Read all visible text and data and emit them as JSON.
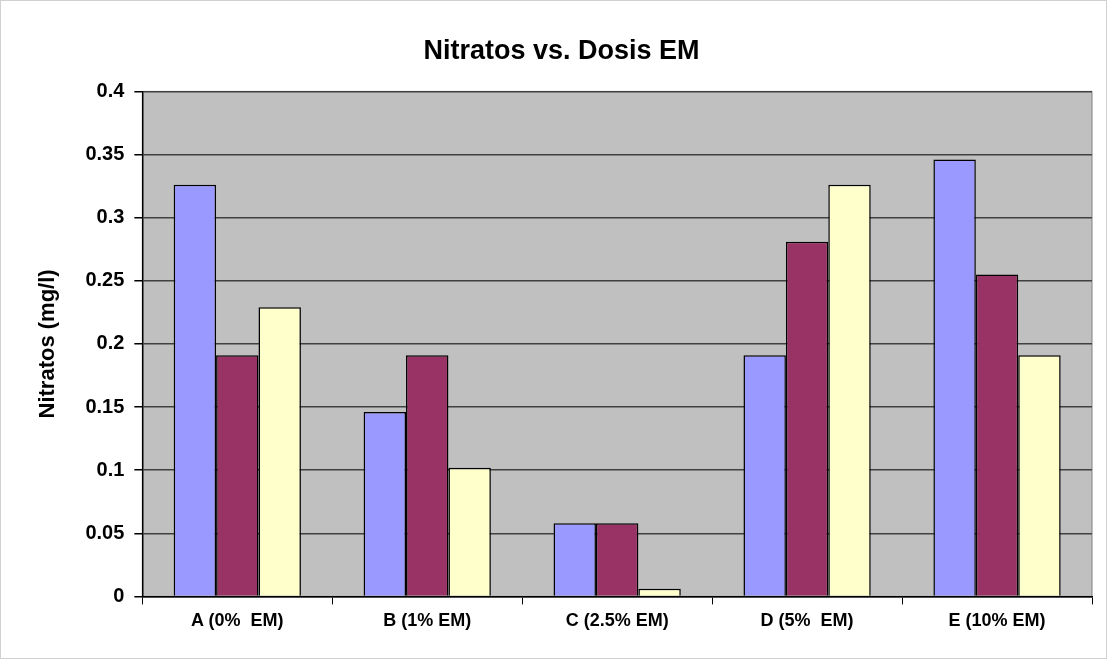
{
  "chart_data": {
    "type": "bar",
    "title": "Nitratos vs. Dosis EM",
    "ylabel": "Nitratos (mg/l)",
    "categories": [
      "A (0%  EM)",
      "B (1% EM)",
      "C (2.5% EM)",
      "D (5%  EM)",
      "E (10% EM)"
    ],
    "series": [
      {
        "color": "#9999ff",
        "values": [
          0.326,
          0.146,
          0.058,
          0.191,
          0.346
        ]
      },
      {
        "color": "#993366",
        "values": [
          0.191,
          0.191,
          0.058,
          0.281,
          0.255
        ]
      },
      {
        "color": "#ffffcc",
        "values": [
          0.229,
          0.102,
          0.006,
          0.326,
          0.191
        ]
      }
    ],
    "ylim": [
      0,
      0.4
    ],
    "yticks": [
      0,
      0.05,
      0.1,
      0.15,
      0.2,
      0.25,
      0.3,
      0.35,
      0.4
    ],
    "grid": "y",
    "legend": false
  }
}
